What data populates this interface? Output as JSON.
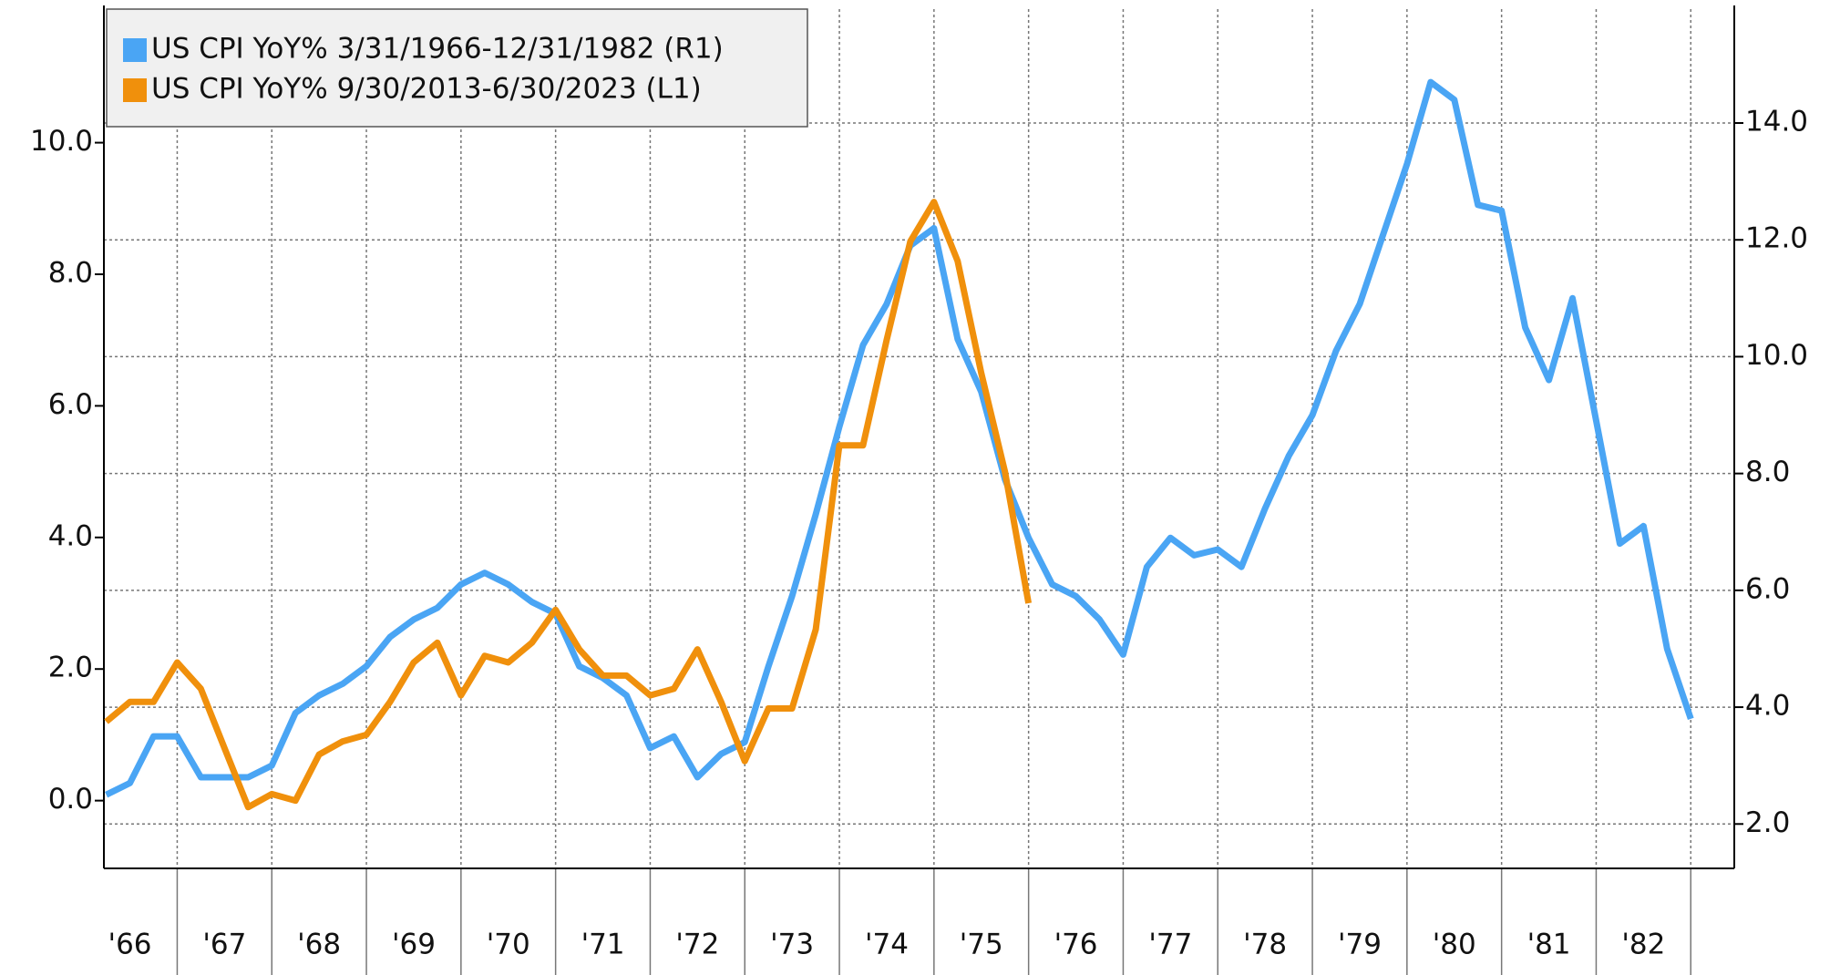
{
  "chart_data": {
    "type": "line",
    "x": [
      1966.25,
      1966.5,
      1966.75,
      1967,
      1967.25,
      1967.5,
      1967.75,
      1968,
      1968.25,
      1968.5,
      1968.75,
      1969,
      1969.25,
      1969.5,
      1969.75,
      1970,
      1970.25,
      1970.5,
      1970.75,
      1971,
      1971.25,
      1971.5,
      1971.75,
      1972,
      1972.25,
      1972.5,
      1972.75,
      1973,
      1973.25,
      1973.5,
      1973.75,
      1974,
      1974.25,
      1974.5,
      1974.75,
      1975,
      1975.25,
      1975.5,
      1975.75,
      1976,
      1976.25,
      1976.5,
      1976.75,
      1977,
      1977.25,
      1977.5,
      1977.75,
      1978,
      1978.25,
      1978.5,
      1978.75,
      1979,
      1979.25,
      1979.5,
      1979.75,
      1980,
      1980.25,
      1980.5,
      1980.75,
      1981,
      1981.25,
      1981.5,
      1981.75,
      1982,
      1982.25,
      1982.5,
      1982.75,
      1983
    ],
    "series": [
      {
        "name": "US CPI YoY% 3/31/1966-12/31/1982 (R1)",
        "color": "#4aa5f4",
        "axis": "y2",
        "values": [
          2.5,
          2.7,
          3.5,
          3.5,
          2.8,
          2.8,
          2.8,
          3.0,
          3.9,
          4.2,
          4.4,
          4.7,
          5.2,
          5.5,
          5.7,
          6.1,
          6.3,
          6.1,
          5.8,
          5.6,
          4.7,
          4.5,
          4.2,
          3.3,
          3.5,
          2.8,
          3.2,
          3.4,
          4.7,
          5.9,
          7.3,
          8.8,
          10.2,
          10.9,
          11.9,
          12.2,
          10.3,
          9.4,
          7.9,
          6.9,
          6.1,
          5.9,
          5.5,
          4.9,
          6.4,
          6.9,
          6.6,
          6.7,
          6.4,
          7.4,
          8.3,
          9.0,
          10.1,
          10.9,
          12.1,
          13.3,
          14.7,
          14.4,
          12.6,
          12.5,
          10.5,
          9.6,
          11.0,
          8.9,
          6.8,
          7.1,
          5.0,
          3.8
        ]
      },
      {
        "name": "US CPI YoY% 9/30/2013-6/30/2023 (L1)",
        "color": "#f0900c",
        "values": [
          1.2,
          1.5,
          1.5,
          2.1,
          1.7,
          0.8,
          -0.1,
          0.1,
          0.0,
          0.7,
          0.9,
          1.0,
          1.5,
          2.1,
          2.4,
          1.6,
          2.2,
          2.1,
          2.4,
          2.9,
          2.3,
          1.9,
          1.9,
          1.6,
          1.7,
          2.3,
          1.5,
          0.6,
          1.4,
          1.4,
          2.6,
          5.4,
          5.4,
          7.0,
          8.5,
          9.1,
          8.2,
          6.5,
          5.0,
          3.0,
          null,
          null,
          null,
          null,
          null,
          null,
          null,
          null,
          null,
          null,
          null,
          null,
          null,
          null,
          null,
          null,
          null,
          null,
          null,
          null,
          null,
          null,
          null,
          null,
          null,
          null,
          null,
          null
        ]
      }
    ],
    "xlim": [
      1966.225,
      1983.46
    ],
    "xticks": [
      {
        "value": 1966.5,
        "label": "'66"
      },
      {
        "value": 1967.5,
        "label": "'67"
      },
      {
        "value": 1968.5,
        "label": "'68"
      },
      {
        "value": 1969.5,
        "label": "'69"
      },
      {
        "value": 1970.5,
        "label": "'70"
      },
      {
        "value": 1971.5,
        "label": "'71"
      },
      {
        "value": 1972.5,
        "label": "'72"
      },
      {
        "value": 1973.5,
        "label": "'73"
      },
      {
        "value": 1974.5,
        "label": "'74"
      },
      {
        "value": 1975.5,
        "label": "'75"
      },
      {
        "value": 1976.5,
        "label": "'76"
      },
      {
        "value": 1977.5,
        "label": "'77"
      },
      {
        "value": 1978.5,
        "label": "'78"
      },
      {
        "value": 1979.5,
        "label": "'79"
      },
      {
        "value": 1980.5,
        "label": "'80"
      },
      {
        "value": 1981.5,
        "label": "'81"
      },
      {
        "value": 1982.5,
        "label": "'82"
      }
    ],
    "ylim": [
      -1.03,
      12.03
    ],
    "yticks": [
      {
        "value": 0,
        "label": "0.0"
      },
      {
        "value": 2,
        "label": "2.0"
      },
      {
        "value": 4,
        "label": "4.0"
      },
      {
        "value": 6,
        "label": "6.0"
      },
      {
        "value": 8,
        "label": "8.0"
      },
      {
        "value": 10,
        "label": "10.0"
      }
    ],
    "y2lim": [
      1.24,
      15.95
    ],
    "y2ticks": [
      {
        "value": 2,
        "label": "2.0"
      },
      {
        "value": 4,
        "label": "4.0"
      },
      {
        "value": 6,
        "label": "6.0"
      },
      {
        "value": 8,
        "label": "8.0"
      },
      {
        "value": 10,
        "label": "10.0"
      },
      {
        "value": 12,
        "label": "12.0"
      },
      {
        "value": 14,
        "label": "14.0"
      }
    ],
    "grid": true,
    "legend": "upper left"
  }
}
